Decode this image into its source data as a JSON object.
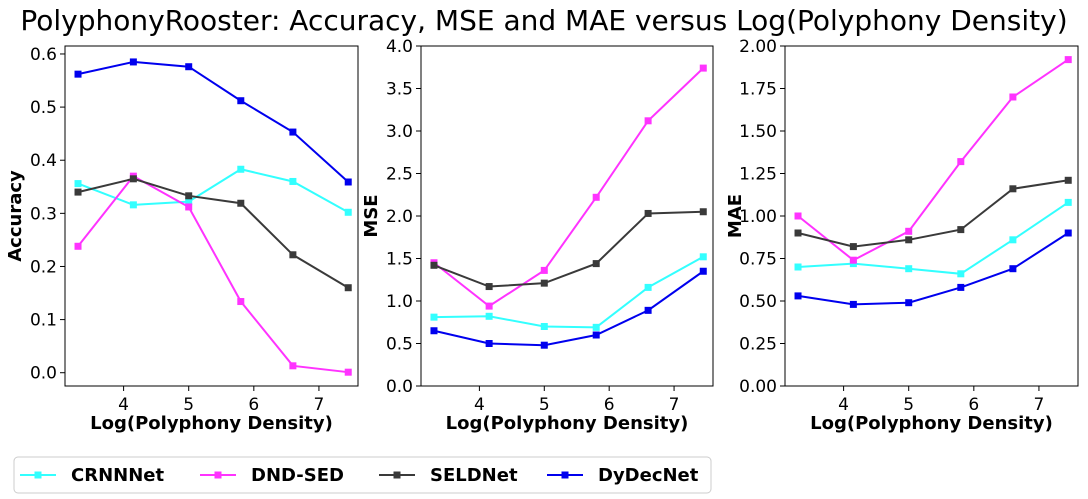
{
  "title": "PolyphonyRooster: Accuracy, MSE and MAE versus Log(Polyphony Density)",
  "legend": {
    "placement": "bottom-left",
    "entries": [
      "CRNNNet",
      "DND-SED",
      "SELDNet",
      "DyDecNet"
    ]
  },
  "colors": {
    "CRNNNet": "#33ffff",
    "DND-SED": "#ff33ff",
    "SELDNet": "#3a3a3a",
    "DyDecNet": "#0000ee"
  },
  "chart_data": [
    {
      "type": "line",
      "xlabel": "Log(Polyphony Density)",
      "ylabel": "Accuracy",
      "x": [
        3.3,
        4.15,
        5.0,
        5.8,
        6.6,
        7.45
      ],
      "xticks": [
        "4",
        "5",
        "6",
        "7"
      ],
      "xlim": [
        3.1,
        7.6
      ],
      "ylim": [
        -0.025,
        0.615
      ],
      "yticks": [
        "0.0",
        "0.1",
        "0.2",
        "0.3",
        "0.4",
        "0.5",
        "0.6"
      ],
      "grid": false,
      "series": [
        {
          "name": "CRNNNet",
          "values": [
            0.356,
            0.316,
            0.322,
            0.383,
            0.36,
            0.302
          ]
        },
        {
          "name": "DND-SED",
          "values": [
            0.238,
            0.37,
            0.312,
            0.134,
            0.013,
            0.001
          ]
        },
        {
          "name": "SELDNet",
          "values": [
            0.34,
            0.365,
            0.333,
            0.319,
            0.222,
            0.16
          ]
        },
        {
          "name": "DyDecNet",
          "values": [
            0.562,
            0.585,
            0.576,
            0.512,
            0.453,
            0.359
          ]
        }
      ]
    },
    {
      "type": "line",
      "xlabel": "Log(Polyphony Density)",
      "ylabel": "MSE",
      "x": [
        3.3,
        4.15,
        5.0,
        5.8,
        6.6,
        7.45
      ],
      "xticks": [
        "4",
        "5",
        "6",
        "7"
      ],
      "xlim": [
        3.1,
        7.6
      ],
      "ylim": [
        0.0,
        4.0
      ],
      "yticks": [
        "0.0",
        "0.5",
        "1.0",
        "1.5",
        "2.0",
        "2.5",
        "3.0",
        "3.5",
        "4.0"
      ],
      "grid": false,
      "series": [
        {
          "name": "CRNNNet",
          "values": [
            0.81,
            0.82,
            0.7,
            0.69,
            1.16,
            1.52
          ]
        },
        {
          "name": "DND-SED",
          "values": [
            1.45,
            0.94,
            1.36,
            2.22,
            3.12,
            3.74
          ]
        },
        {
          "name": "SELDNet",
          "values": [
            1.42,
            1.17,
            1.21,
            1.44,
            2.03,
            2.05
          ]
        },
        {
          "name": "DyDecNet",
          "values": [
            0.65,
            0.5,
            0.48,
            0.6,
            0.89,
            1.35
          ]
        }
      ]
    },
    {
      "type": "line",
      "xlabel": "Log(Polyphony Density)",
      "ylabel": "MAE",
      "x": [
        3.3,
        4.15,
        5.0,
        5.8,
        6.6,
        7.45
      ],
      "xticks": [
        "4",
        "5",
        "6",
        "7"
      ],
      "xlim": [
        3.1,
        7.6
      ],
      "ylim": [
        0.0,
        2.0
      ],
      "yticks": [
        "0.00",
        "0.25",
        "0.50",
        "0.75",
        "1.00",
        "1.25",
        "1.50",
        "1.75",
        "2.00"
      ],
      "grid": false,
      "series": [
        {
          "name": "CRNNNet",
          "values": [
            0.7,
            0.72,
            0.69,
            0.66,
            0.86,
            1.08
          ]
        },
        {
          "name": "DND-SED",
          "values": [
            1.0,
            0.74,
            0.91,
            1.32,
            1.7,
            1.92
          ]
        },
        {
          "name": "SELDNet",
          "values": [
            0.9,
            0.82,
            0.86,
            0.92,
            1.16,
            1.21
          ]
        },
        {
          "name": "DyDecNet",
          "values": [
            0.53,
            0.48,
            0.49,
            0.58,
            0.69,
            0.9
          ]
        }
      ]
    }
  ]
}
